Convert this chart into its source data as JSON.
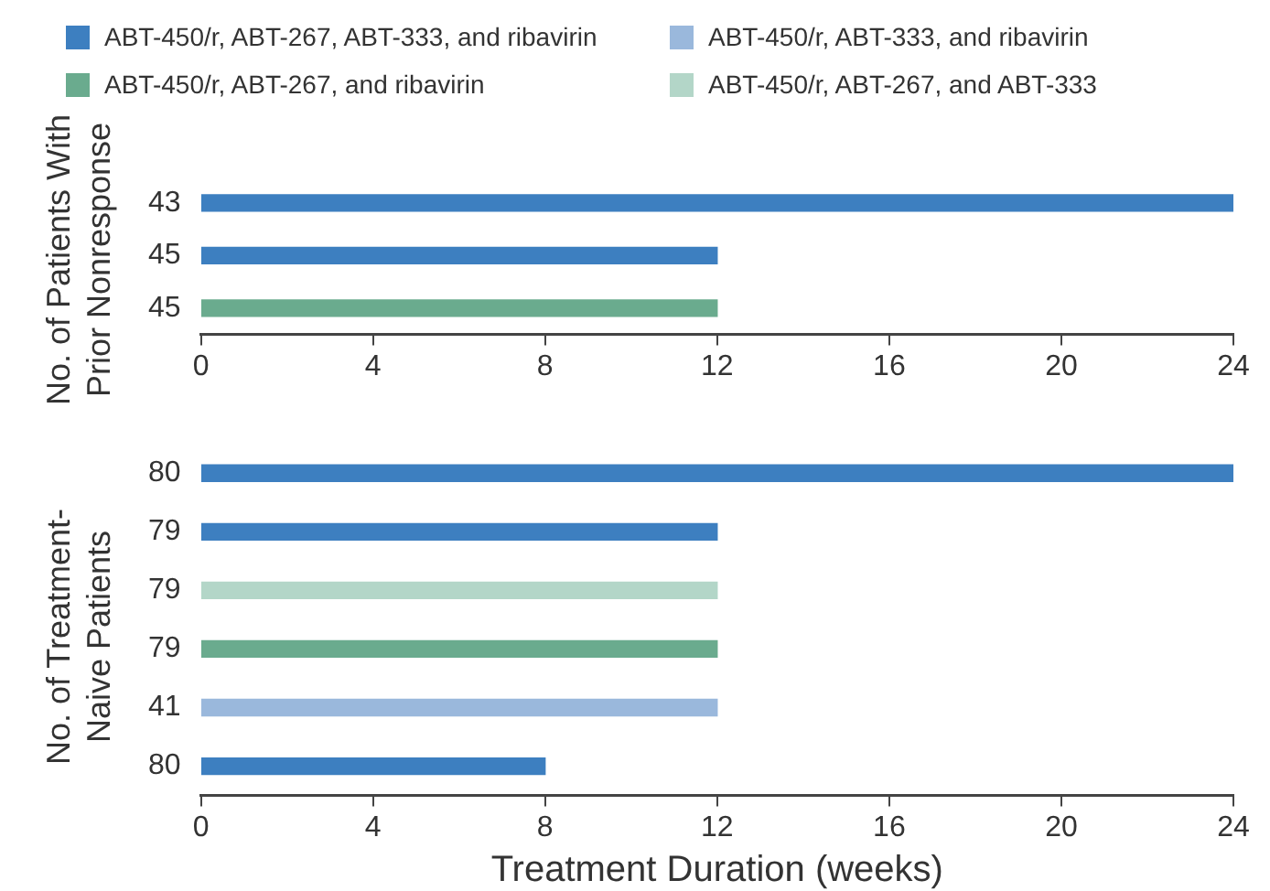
{
  "chart_data": [
    {
      "type": "bar",
      "orientation": "horizontal",
      "stacked": true,
      "ylabel": "No. of Patients With Prior Nonresponse",
      "categories": [
        "43",
        "45",
        "45"
      ],
      "legend": "top",
      "xlim": [
        0,
        24
      ],
      "xticks": [
        0,
        4,
        8,
        12,
        16,
        20,
        24
      ],
      "grid": false,
      "series": [
        {
          "name": "ABT-450/r, ABT-267, ABT-333, and ribavirin",
          "color": "#3d7fc0",
          "values": [
            24,
            12,
            null
          ]
        },
        {
          "name": "ABT-450/r, ABT-333, and ribavirin",
          "color": "#9ab8dc",
          "values": [
            null,
            null,
            null
          ]
        },
        {
          "name": "ABT-450/r, ABT-267, and ribavirin",
          "color": "#6aab8e",
          "values": [
            null,
            null,
            12
          ]
        },
        {
          "name": "ABT-450/r, ABT-267, and ABT-333",
          "color": "#b3d6c8",
          "values": [
            null,
            null,
            null
          ]
        }
      ]
    },
    {
      "type": "bar",
      "orientation": "horizontal",
      "stacked": true,
      "ylabel": "No. of Treatment-Naive Patients",
      "xlabel": "Treatment Duration (weeks)",
      "categories": [
        "80",
        "79",
        "79",
        "79",
        "41",
        "80"
      ],
      "xlim": [
        0,
        24
      ],
      "xticks": [
        0,
        4,
        8,
        12,
        16,
        20,
        24
      ],
      "grid": false,
      "series": [
        {
          "color": "#3d7fc0",
          "values": [
            24,
            12,
            null,
            null,
            null,
            8
          ]
        },
        {
          "color": "#9ab8dc",
          "values": [
            null,
            null,
            null,
            null,
            12,
            null
          ]
        },
        {
          "color": "#6aab8e",
          "values": [
            null,
            null,
            null,
            12,
            null,
            null
          ]
        },
        {
          "color": "#b3d6c8",
          "values": [
            null,
            null,
            12,
            null,
            null,
            null
          ]
        }
      ]
    }
  ]
}
